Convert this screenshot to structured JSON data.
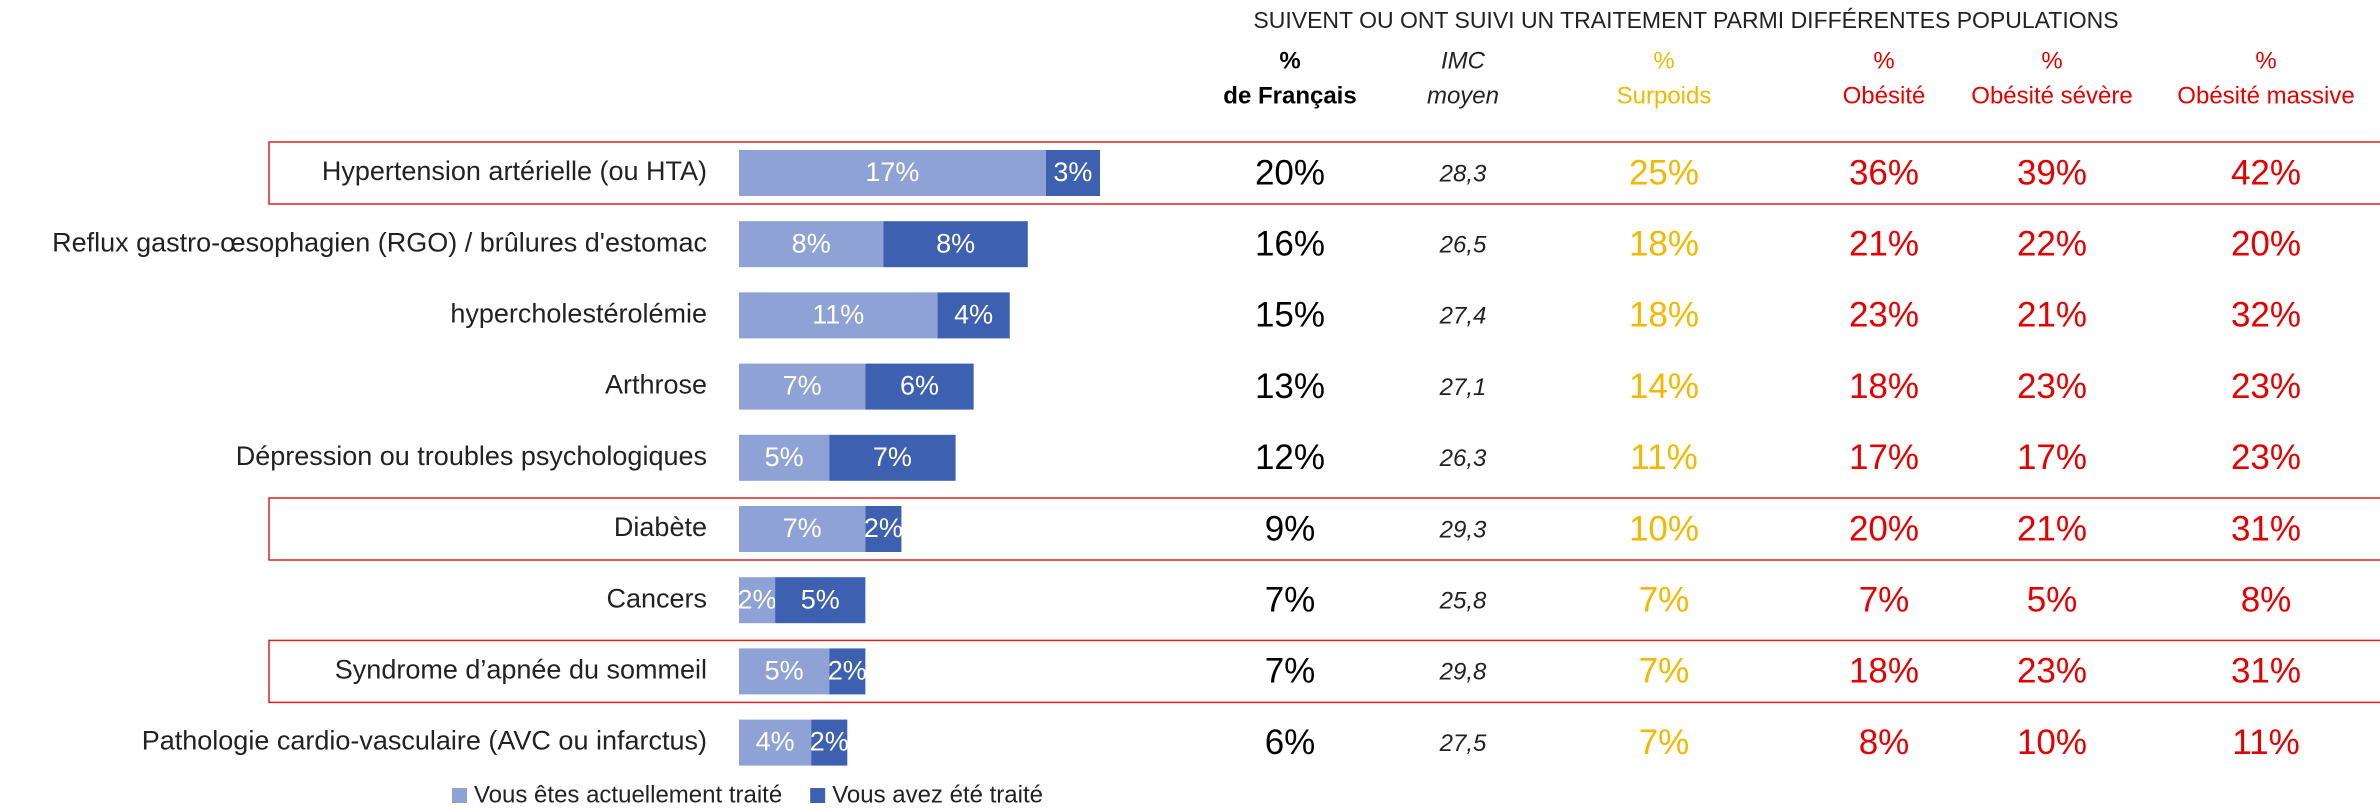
{
  "chart_data": {
    "type": "bar",
    "orientation": "horizontal",
    "stacked": true,
    "categories": [
      "Hypertension artérielle (ou HTA)",
      "Reflux gastro-œsophagien (RGO) / brûlures d'estomac",
      "hypercholestérolémie",
      "Arthrose",
      "Dépression ou troubles psychologiques",
      "Diabète",
      "Cancers",
      "Syndrome d’apnée du sommeil",
      "Pathologie cardio-vasculaire (AVC ou infarctus)"
    ],
    "series": [
      {
        "name": "Vous êtes actuellement traité",
        "color": "#8fa2d5",
        "values": [
          17,
          8,
          11,
          7,
          5,
          7,
          2,
          5,
          4
        ],
        "value_labels": [
          "17%",
          "8%",
          "11%",
          "7%",
          "5%",
          "7%",
          "2%",
          "5%",
          "4%"
        ]
      },
      {
        "name": "Vous avez été traité",
        "color": "#3d60b0",
        "values": [
          3,
          8,
          4,
          6,
          7,
          2,
          5,
          2,
          2
        ],
        "value_labels": [
          "3%",
          "8%",
          "4%",
          "6%",
          "7%",
          "2%",
          "5%",
          "2%",
          "2%"
        ]
      }
    ],
    "highlighted_rows": [
      0,
      5,
      7
    ],
    "highlight_color": "#e02020"
  },
  "table": {
    "title": "SUIVENT OU  ONT SUIVI UN TRAITEMENT PARMI DIFFÉRENTES POPULATIONS",
    "columns": [
      {
        "header": [
          "%",
          "de Français"
        ],
        "color": "#000000",
        "italic": false,
        "bold": true
      },
      {
        "header": [
          "IMC",
          "moyen"
        ],
        "color": "#222222",
        "italic": true,
        "bold": false
      },
      {
        "header": [
          "%",
          "Surpoids"
        ],
        "color": "#f5b800",
        "italic": false,
        "bold": false
      },
      {
        "header": [
          "%",
          "Obésité"
        ],
        "color": "#e60000",
        "italic": false,
        "bold": false
      },
      {
        "header": [
          "%",
          "Obésité sévère"
        ],
        "color": "#e60000",
        "italic": false,
        "bold": false
      },
      {
        "header": [
          "%",
          "Obésité massive"
        ],
        "color": "#e60000",
        "italic": false,
        "bold": false
      }
    ],
    "rows": [
      [
        "20%",
        "28,3",
        "25%",
        "36%",
        "39%",
        "42%"
      ],
      [
        "16%",
        "26,5",
        "18%",
        "21%",
        "22%",
        "20%"
      ],
      [
        "15%",
        "27,4",
        "18%",
        "23%",
        "21%",
        "32%"
      ],
      [
        "13%",
        "27,1",
        "14%",
        "18%",
        "23%",
        "23%"
      ],
      [
        "12%",
        "26,3",
        "11%",
        "17%",
        "17%",
        "23%"
      ],
      [
        "9%",
        "29,3",
        "10%",
        "20%",
        "21%",
        "31%"
      ],
      [
        "7%",
        "25,8",
        "7%",
        "7%",
        "5%",
        "8%"
      ],
      [
        "7%",
        "29,8",
        "7%",
        "18%",
        "23%",
        "31%"
      ],
      [
        "6%",
        "27,5",
        "7%",
        "8%",
        "10%",
        "11%"
      ]
    ]
  }
}
